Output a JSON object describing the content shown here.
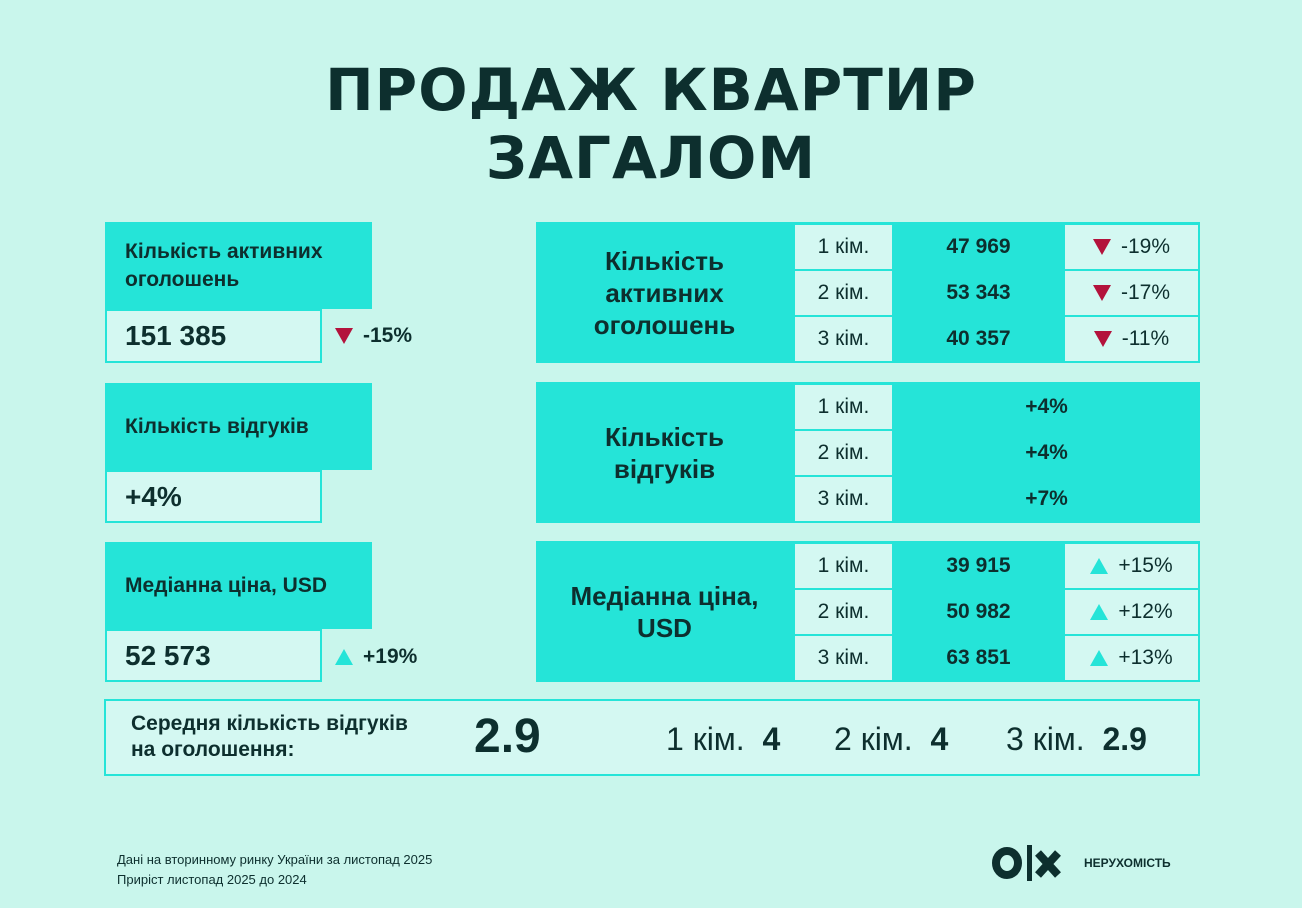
{
  "title": {
    "line1": "ПРОДАЖ КВАРТИР",
    "line2": "ЗАГАЛОМ"
  },
  "colors": {
    "background": "#c9f6ec",
    "accent": "#25e4d8",
    "down": "#b3133c",
    "text": "#0d2f2e"
  },
  "left": [
    {
      "label": "Кількість активних оголошень",
      "value": "151 385",
      "change": "-15%",
      "direction": "down"
    },
    {
      "label": "Кількість відгуків",
      "value": "+4%"
    },
    {
      "label": "Медіанна ціна, USD",
      "value": "52 573",
      "change": "+19%",
      "direction": "up"
    }
  ],
  "panels": [
    {
      "title": "Кількість активних оголошень",
      "rows": [
        {
          "rooms": "1 кім.",
          "value": "47 969",
          "change": "-19%",
          "direction": "down"
        },
        {
          "rooms": "2 кім.",
          "value": "53 343",
          "change": "-17%",
          "direction": "down"
        },
        {
          "rooms": "3 кім.",
          "value": "40 357",
          "change": "-11%",
          "direction": "down"
        }
      ]
    },
    {
      "title": "Кількість відгуків",
      "rows": [
        {
          "rooms": "1 кім.",
          "value": "+4%"
        },
        {
          "rooms": "2 кім.",
          "value": "+4%"
        },
        {
          "rooms": "3 кім.",
          "value": "+7%"
        }
      ]
    },
    {
      "title": "Медіанна ціна, USD",
      "rows": [
        {
          "rooms": "1 кім.",
          "value": "39 915",
          "change": "+15%",
          "direction": "up"
        },
        {
          "rooms": "2 кім.",
          "value": "50 982",
          "change": "+12%",
          "direction": "up"
        },
        {
          "rooms": "3 кім.",
          "value": "63 851",
          "change": "+13%",
          "direction": "up"
        }
      ]
    }
  ],
  "average": {
    "label": "Середня кількість відгуків на оголошення:",
    "value": "2.9",
    "items": [
      {
        "rooms": "1 кім.",
        "value": "4"
      },
      {
        "rooms": "2 кім.",
        "value": "4"
      },
      {
        "rooms": "3 кім.",
        "value": "2.9"
      }
    ]
  },
  "footer": {
    "line1": "Дані на вторинному ринку України за листопад 2025",
    "line2": "Приріст листопад 2025 до 2024",
    "logo": "OLX",
    "brand": "НЕРУХОМІСТЬ"
  }
}
